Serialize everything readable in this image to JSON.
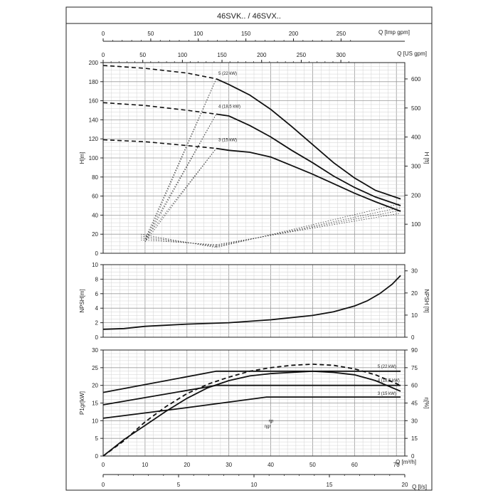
{
  "title": "46SVK.. / 46SVX..",
  "top_axes": {
    "imp_gpm": {
      "label": "Q [Imp gpm]",
      "ticks": [
        0,
        50,
        100,
        150,
        200,
        250
      ]
    },
    "us_gpm": {
      "label": "Q [US gpm]",
      "ticks": [
        0,
        50,
        100,
        150,
        200,
        250,
        300
      ]
    }
  },
  "bottom_axes": {
    "m3h": {
      "label": "Q [m³/h]",
      "ticks": [
        0,
        10,
        20,
        30,
        40,
        50,
        60,
        70
      ]
    },
    "ls": {
      "label": "Q [l/s]",
      "ticks": [
        0,
        5,
        10,
        15,
        20
      ]
    }
  },
  "chart_data": [
    {
      "type": "line",
      "panel": "head",
      "xlabel": "Q [m³/h]",
      "ylabel": "H[m]",
      "y2label": "H [ft]",
      "xlim": [
        0,
        72
      ],
      "ylim": [
        0,
        200
      ],
      "yticks": [
        0,
        20,
        40,
        60,
        80,
        100,
        120,
        140,
        160,
        180,
        200
      ],
      "y2ticks": [
        100,
        200,
        300,
        400,
        500,
        600
      ],
      "grid": true,
      "series": [
        {
          "name": "5 (22 kW)",
          "dashed": [
            [
              0,
              197
            ],
            [
              10,
              194
            ],
            [
              20,
              189
            ],
            [
              27,
              183
            ]
          ],
          "values": [
            [
              27,
              183
            ],
            [
              30,
              177
            ],
            [
              35,
              166
            ],
            [
              40,
              151
            ],
            [
              45,
              133
            ],
            [
              50,
              114
            ],
            [
              55,
              95
            ],
            [
              60,
              79
            ],
            [
              65,
              66
            ],
            [
              71,
              57
            ]
          ]
        },
        {
          "name": "4 (18,5 kW)",
          "dashed": [
            [
              0,
              158
            ],
            [
              10,
              155
            ],
            [
              20,
              150
            ],
            [
              27,
              146
            ]
          ],
          "values": [
            [
              27,
              146
            ],
            [
              30,
              144
            ],
            [
              35,
              134
            ],
            [
              40,
              122
            ],
            [
              45,
              108
            ],
            [
              50,
              95
            ],
            [
              55,
              81
            ],
            [
              60,
              69
            ],
            [
              65,
              59
            ],
            [
              71,
              50
            ]
          ]
        },
        {
          "name": "3 (15 kW)",
          "dashed": [
            [
              0,
              119
            ],
            [
              10,
              117
            ],
            [
              20,
              113
            ],
            [
              27,
              110
            ]
          ],
          "values": [
            [
              27,
              110
            ],
            [
              30,
              108
            ],
            [
              35,
              106
            ],
            [
              40,
              101
            ],
            [
              45,
              92
            ],
            [
              50,
              83
            ],
            [
              55,
              73
            ],
            [
              60,
              63
            ],
            [
              65,
              54
            ],
            [
              71,
              44
            ]
          ]
        }
      ],
      "dotted": [
        [
          [
            10,
            12
          ],
          [
            27,
            183
          ]
        ],
        [
          [
            10,
            12
          ],
          [
            27,
            146
          ]
        ],
        [
          [
            10,
            12
          ],
          [
            27,
            110
          ]
        ],
        [
          [
            10,
            15
          ],
          [
            27,
            183
          ]
        ],
        [
          [
            10,
            15
          ],
          [
            27,
            146
          ]
        ],
        [
          [
            10,
            15
          ],
          [
            27,
            110
          ]
        ],
        [
          [
            9,
            20
          ],
          [
            27,
            6
          ]
        ],
        [
          [
            9,
            18
          ],
          [
            27,
            7
          ]
        ],
        [
          [
            9,
            16
          ],
          [
            27,
            8
          ]
        ],
        [
          [
            9,
            14
          ],
          [
            27,
            9
          ]
        ],
        [
          [
            27,
            6
          ],
          [
            71,
            52
          ]
        ],
        [
          [
            27,
            7
          ],
          [
            71,
            48
          ]
        ],
        [
          [
            27,
            8
          ],
          [
            71,
            45
          ]
        ],
        [
          [
            27,
            9
          ],
          [
            71,
            42
          ]
        ]
      ]
    },
    {
      "type": "line",
      "panel": "npsh",
      "ylabel": "NPSH[m]",
      "y2label": "NPSH [ft]",
      "xlim": [
        0,
        72
      ],
      "ylim": [
        0,
        10
      ],
      "yticks": [
        0,
        2,
        4,
        6,
        8,
        10
      ],
      "y2ticks": [
        0,
        10,
        20,
        30
      ],
      "series": [
        {
          "name": "NPSH",
          "values": [
            [
              0,
              1.1
            ],
            [
              5,
              1.2
            ],
            [
              10,
              1.5
            ],
            [
              20,
              1.8
            ],
            [
              30,
              2.0
            ],
            [
              40,
              2.4
            ],
            [
              50,
              3.0
            ],
            [
              55,
              3.5
            ],
            [
              60,
              4.3
            ],
            [
              63,
              5.0
            ],
            [
              66,
              6.0
            ],
            [
              69,
              7.3
            ],
            [
              71,
              8.5
            ]
          ]
        }
      ]
    },
    {
      "type": "line",
      "panel": "power",
      "ylabel": "P1gr[kW]",
      "y2label": "η[%]",
      "xlim": [
        0,
        72
      ],
      "ylim": [
        0,
        30
      ],
      "yticks": [
        0,
        5,
        10,
        15,
        20,
        25,
        30
      ],
      "y2ticks": [
        0,
        15,
        30,
        45,
        60,
        75,
        90
      ],
      "series": [
        {
          "name": "5 (22 kW)",
          "values": [
            [
              0,
              18.0
            ],
            [
              27,
              24.0
            ],
            [
              71,
              24.0
            ]
          ]
        },
        {
          "name": "4 (18,5 kW)",
          "values": [
            [
              0,
              14.5
            ],
            [
              27,
              20.0
            ],
            [
              71,
              20.0
            ]
          ]
        },
        {
          "name": "3 (15 kW)",
          "values": [
            [
              0,
              10.7
            ],
            [
              20,
              13.7
            ],
            [
              39,
              16.7
            ],
            [
              71,
              16.7
            ]
          ]
        },
        {
          "name": "ηgr",
          "values": [
            [
              0,
              0
            ],
            [
              5,
              14
            ],
            [
              10,
              26
            ],
            [
              15,
              38
            ],
            [
              20,
              49
            ],
            [
              25,
              58
            ],
            [
              30,
              64
            ],
            [
              35,
              68
            ],
            [
              40,
              70
            ],
            [
              45,
              71
            ],
            [
              50,
              72
            ],
            [
              55,
              71
            ],
            [
              60,
              69
            ],
            [
              65,
              64
            ],
            [
              71,
              55
            ]
          ]
        },
        {
          "name": "ηp",
          "dashed": true,
          "values": [
            [
              0,
              0
            ],
            [
              5,
              13
            ],
            [
              10,
              29
            ],
            [
              15,
              42
            ],
            [
              20,
              53
            ],
            [
              25,
              61
            ],
            [
              30,
              67
            ],
            [
              35,
              72
            ],
            [
              40,
              75
            ],
            [
              45,
              77
            ],
            [
              50,
              78
            ],
            [
              55,
              77
            ],
            [
              60,
              74
            ],
            [
              65,
              69
            ],
            [
              71,
              60
            ]
          ]
        }
      ]
    }
  ]
}
